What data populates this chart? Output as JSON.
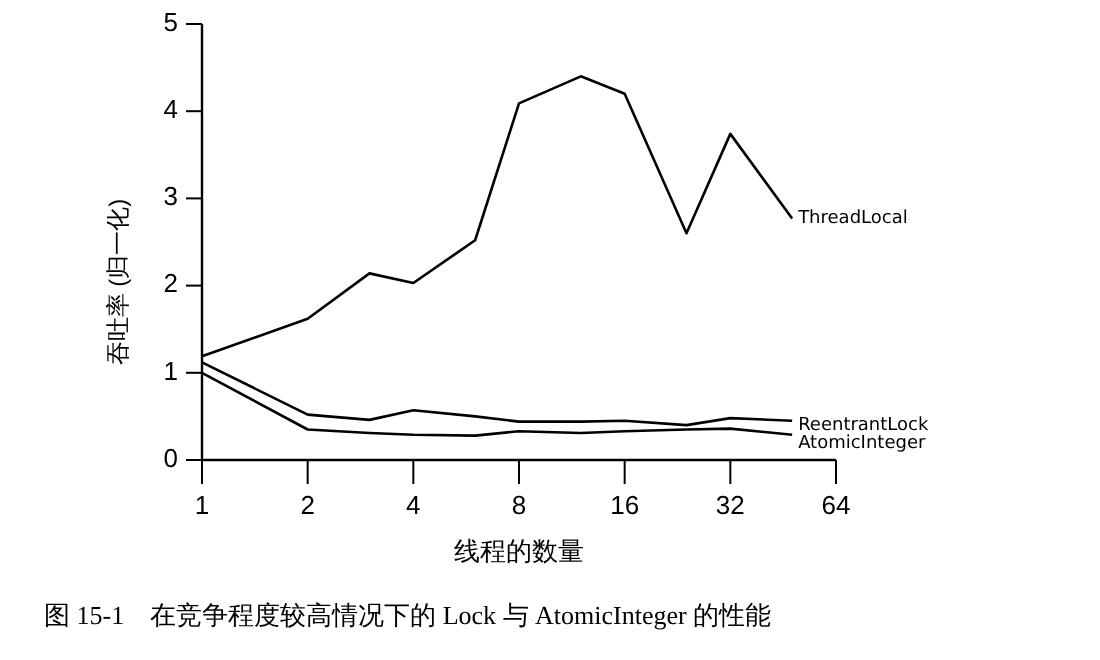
{
  "chart_data": {
    "type": "line",
    "title": "图 15-1　在竞争程度较高情况下的 Lock 与 AtomicInteger 的性能",
    "xlabel": "线程的数量",
    "ylabel": "吞吐率 (归一化)",
    "x": [
      1,
      2,
      3,
      4,
      6,
      8,
      12,
      16,
      24,
      32,
      48
    ],
    "series": [
      {
        "name": "ThreadLocal",
        "color": "#000000",
        "values": [
          1.19,
          1.62,
          2.14,
          2.03,
          2.52,
          4.09,
          4.4,
          4.2,
          2.6,
          3.74,
          2.77
        ]
      },
      {
        "name": "ReentrantLock",
        "color": "#000000",
        "values": [
          1.12,
          0.52,
          0.46,
          0.57,
          0.5,
          0.44,
          0.44,
          0.45,
          0.4,
          0.48,
          0.45
        ]
      },
      {
        "name": "AtomicInteger",
        "color": "#000000",
        "values": [
          1.0,
          0.35,
          0.31,
          0.29,
          0.28,
          0.33,
          0.31,
          0.33,
          0.35,
          0.36,
          0.29
        ]
      }
    ],
    "log": "x",
    "xlim": [
      1,
      64
    ],
    "xticks": [
      1,
      2,
      4,
      8,
      16,
      32,
      64
    ],
    "ylim": [
      0,
      5
    ],
    "yticks": [
      0,
      1,
      2,
      3,
      4,
      5
    ],
    "grid": false,
    "marker": "none",
    "line_style": "solid"
  }
}
